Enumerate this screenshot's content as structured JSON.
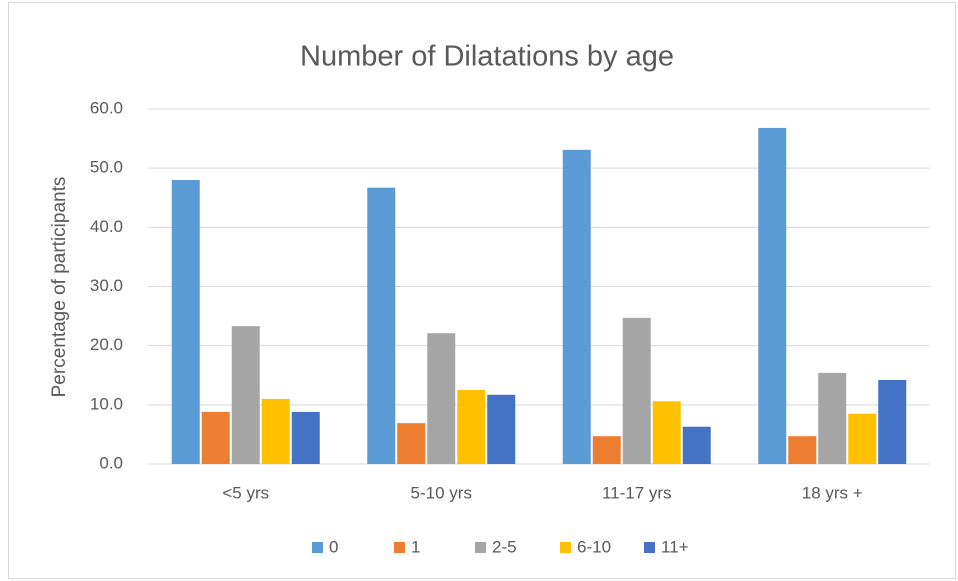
{
  "chart_data": {
    "type": "bar",
    "title": "Number of Dilatations by age",
    "y_label": "Percentage of participants",
    "categories": [
      "<5 yrs",
      "5-10 yrs",
      "11-17 yrs",
      "18 yrs +"
    ],
    "series": [
      {
        "name": "0",
        "color": "#5b9bd5",
        "values": [
          48.0,
          46.7,
          53.1,
          56.8
        ]
      },
      {
        "name": "1",
        "color": "#ed7d31",
        "values": [
          8.8,
          6.9,
          4.7,
          4.7
        ]
      },
      {
        "name": "2-5",
        "color": "#a5a5a5",
        "values": [
          23.3,
          22.1,
          24.7,
          15.4
        ]
      },
      {
        "name": "6-10",
        "color": "#ffc000",
        "values": [
          11.0,
          12.5,
          10.6,
          8.5
        ]
      },
      {
        "name": "11+",
        "color": "#4472c4",
        "values": [
          8.8,
          11.7,
          6.3,
          14.2
        ]
      }
    ],
    "ylim": [
      0,
      60
    ],
    "yticks": [
      {
        "value": 0,
        "label": "0.0"
      },
      {
        "value": 10,
        "label": "10.0"
      },
      {
        "value": 20,
        "label": "20.0"
      },
      {
        "value": 30,
        "label": "30.0"
      },
      {
        "value": 40,
        "label": "40.0"
      },
      {
        "value": 50,
        "label": "50.0"
      },
      {
        "value": 60,
        "label": "60.0"
      }
    ],
    "grid": true,
    "legend": "bottom"
  }
}
